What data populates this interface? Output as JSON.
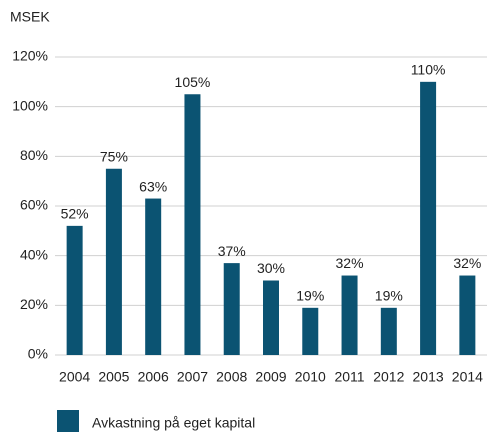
{
  "chart_data": {
    "type": "bar",
    "y_axis_label": "MSEK",
    "categories": [
      "2004",
      "2005",
      "2006",
      "2007",
      "2008",
      "2009",
      "2010",
      "2011",
      "2012",
      "2013",
      "2014"
    ],
    "series": [
      {
        "name": "Avkastning på eget kapital",
        "color": "#0b5372",
        "values": [
          52,
          75,
          63,
          105,
          37,
          30,
          19,
          32,
          19,
          110,
          32
        ],
        "value_labels": [
          "52%",
          "75%",
          "63%",
          "105%",
          "37%",
          "30%",
          "19%",
          "32%",
          "19%",
          "110%",
          "32%"
        ]
      }
    ],
    "ylim": [
      0,
      120
    ],
    "yticks": [
      {
        "value": 0,
        "label": "0%"
      },
      {
        "value": 20,
        "label": "20%"
      },
      {
        "value": 40,
        "label": "40%"
      },
      {
        "value": 60,
        "label": "60%"
      },
      {
        "value": 80,
        "label": "80%"
      },
      {
        "value": 100,
        "label": "100%"
      },
      {
        "value": 120,
        "label": "120%"
      }
    ],
    "grid": true
  }
}
